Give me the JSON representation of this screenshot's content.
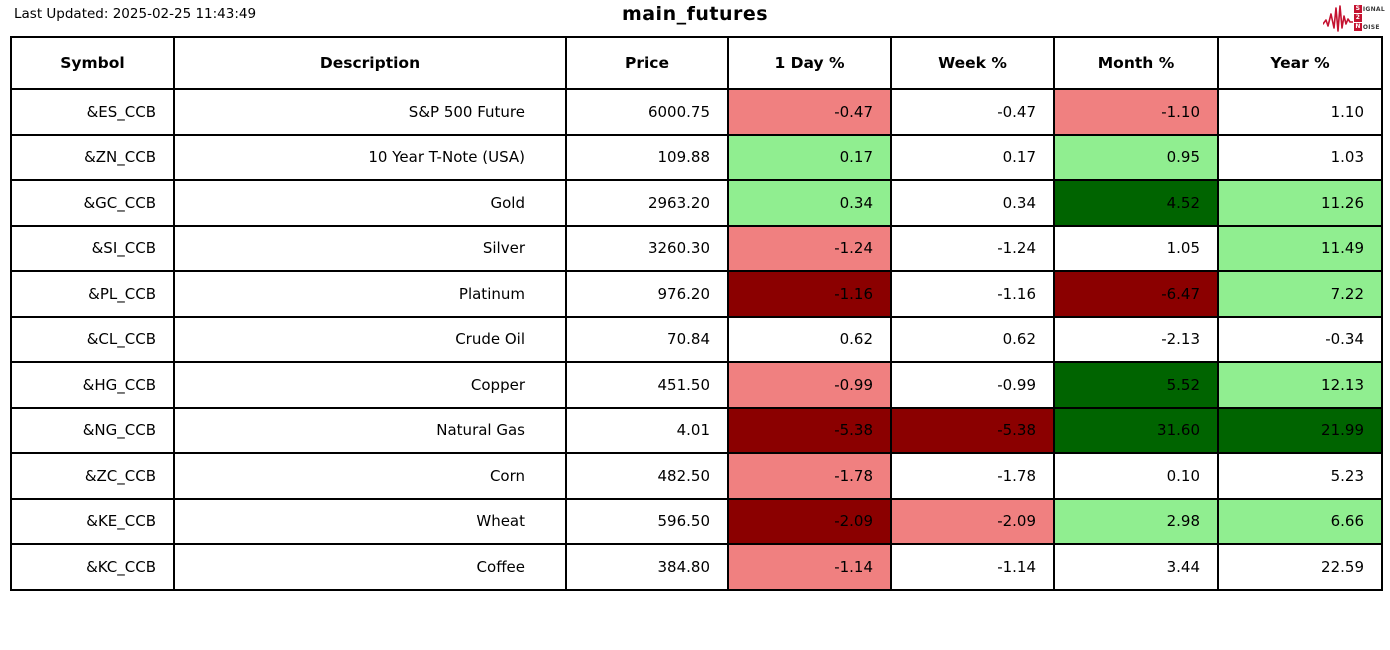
{
  "meta": {
    "last_updated": "Last Updated: 2025-02-25 11:43:49",
    "title": "main_futures"
  },
  "logo": {
    "line1_initial": "S",
    "line1_rest": "IGNAL",
    "line2_initial": "2",
    "line2_rest": "",
    "line3_initial": "N",
    "line3_rest": "OISE",
    "color": "#c41230"
  },
  "palette": {
    "white": "#ffffff",
    "light-red": "#f08080",
    "dark-red": "#8b0000",
    "light-green": "#90ee90",
    "dark-green": "#006400"
  },
  "chart_data": {
    "type": "table",
    "title": "main_futures",
    "columns": [
      "Symbol",
      "Description",
      "Price",
      "1 Day %",
      "Week %",
      "Month %",
      "Year %"
    ],
    "rows": [
      {
        "symbol": "&ES_CCB",
        "description": "S&P 500 Future",
        "price": "6000.75",
        "day": "-0.47",
        "week": "-0.47",
        "month": "-1.10",
        "year": "1.10",
        "cell_colors": {
          "day": "light-red",
          "week": "white",
          "month": "light-red",
          "year": "white"
        }
      },
      {
        "symbol": "&ZN_CCB",
        "description": "10 Year T-Note (USA)",
        "price": "109.88",
        "day": "0.17",
        "week": "0.17",
        "month": "0.95",
        "year": "1.03",
        "cell_colors": {
          "day": "light-green",
          "week": "white",
          "month": "light-green",
          "year": "white"
        }
      },
      {
        "symbol": "&GC_CCB",
        "description": "Gold",
        "price": "2963.20",
        "day": "0.34",
        "week": "0.34",
        "month": "4.52",
        "year": "11.26",
        "cell_colors": {
          "day": "light-green",
          "week": "white",
          "month": "dark-green",
          "year": "light-green"
        }
      },
      {
        "symbol": "&SI_CCB",
        "description": "Silver",
        "price": "3260.30",
        "day": "-1.24",
        "week": "-1.24",
        "month": "1.05",
        "year": "11.49",
        "cell_colors": {
          "day": "light-red",
          "week": "white",
          "month": "white",
          "year": "light-green"
        }
      },
      {
        "symbol": "&PL_CCB",
        "description": "Platinum",
        "price": "976.20",
        "day": "-1.16",
        "week": "-1.16",
        "month": "-6.47",
        "year": "7.22",
        "cell_colors": {
          "day": "dark-red",
          "week": "white",
          "month": "dark-red",
          "year": "light-green"
        }
      },
      {
        "symbol": "&CL_CCB",
        "description": "Crude Oil",
        "price": "70.84",
        "day": "0.62",
        "week": "0.62",
        "month": "-2.13",
        "year": "-0.34",
        "cell_colors": {
          "day": "white",
          "week": "white",
          "month": "white",
          "year": "white"
        }
      },
      {
        "symbol": "&HG_CCB",
        "description": "Copper",
        "price": "451.50",
        "day": "-0.99",
        "week": "-0.99",
        "month": "5.52",
        "year": "12.13",
        "cell_colors": {
          "day": "light-red",
          "week": "white",
          "month": "dark-green",
          "year": "light-green"
        }
      },
      {
        "symbol": "&NG_CCB",
        "description": "Natural Gas",
        "price": "4.01",
        "day": "-5.38",
        "week": "-5.38",
        "month": "31.60",
        "year": "21.99",
        "cell_colors": {
          "day": "dark-red",
          "week": "dark-red",
          "month": "dark-green",
          "year": "dark-green"
        }
      },
      {
        "symbol": "&ZC_CCB",
        "description": "Corn",
        "price": "482.50",
        "day": "-1.78",
        "week": "-1.78",
        "month": "0.10",
        "year": "5.23",
        "cell_colors": {
          "day": "light-red",
          "week": "white",
          "month": "white",
          "year": "white"
        }
      },
      {
        "symbol": "&KE_CCB",
        "description": "Wheat",
        "price": "596.50",
        "day": "-2.09",
        "week": "-2.09",
        "month": "2.98",
        "year": "6.66",
        "cell_colors": {
          "day": "dark-red",
          "week": "light-red",
          "month": "light-green",
          "year": "light-green"
        }
      },
      {
        "symbol": "&KC_CCB",
        "description": "Coffee",
        "price": "384.80",
        "day": "-1.14",
        "week": "-1.14",
        "month": "3.44",
        "year": "22.59",
        "cell_colors": {
          "day": "light-red",
          "week": "white",
          "month": "white",
          "year": "white"
        }
      }
    ]
  }
}
